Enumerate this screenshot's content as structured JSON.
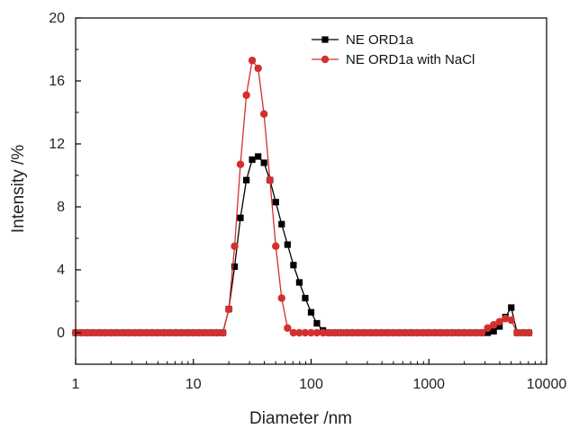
{
  "chart_data": {
    "type": "scatter",
    "x_scale": "log",
    "xlabel": "Diameter /nm",
    "ylabel": "Intensity /%",
    "xlim": [
      1,
      10000
    ],
    "ylim": [
      -2,
      20
    ],
    "x_ticks": [
      1,
      10,
      100,
      1000,
      10000
    ],
    "x_tick_labels": [
      "1",
      "10",
      "100",
      "1000",
      "10000"
    ],
    "y_ticks": [
      0,
      4,
      8,
      12,
      16,
      20
    ],
    "y_tick_labels": [
      "0",
      "4",
      "8",
      "12",
      "16",
      "20"
    ],
    "grid": false,
    "legend_position": "top-right",
    "series": [
      {
        "name": "NE ORD1a",
        "color": "#000000",
        "marker": "square",
        "points": [
          [
            1.0,
            0
          ],
          [
            1.12,
            0
          ],
          [
            1.25,
            0
          ],
          [
            1.41,
            0
          ],
          [
            1.58,
            0
          ],
          [
            1.78,
            0
          ],
          [
            2.0,
            0
          ],
          [
            2.24,
            0
          ],
          [
            2.51,
            0
          ],
          [
            2.82,
            0
          ],
          [
            3.16,
            0
          ],
          [
            3.55,
            0
          ],
          [
            3.98,
            0
          ],
          [
            4.47,
            0
          ],
          [
            5.01,
            0
          ],
          [
            5.62,
            0
          ],
          [
            6.31,
            0
          ],
          [
            7.08,
            0
          ],
          [
            7.94,
            0
          ],
          [
            8.91,
            0
          ],
          [
            10.0,
            0
          ],
          [
            11.2,
            0
          ],
          [
            12.6,
            0
          ],
          [
            14.1,
            0
          ],
          [
            15.8,
            0
          ],
          [
            17.8,
            0
          ],
          [
            20.0,
            1.5
          ],
          [
            22.4,
            4.2
          ],
          [
            25.1,
            7.3
          ],
          [
            28.2,
            9.7
          ],
          [
            31.6,
            11.0
          ],
          [
            35.5,
            11.2
          ],
          [
            39.8,
            10.8
          ],
          [
            44.7,
            9.7
          ],
          [
            50.1,
            8.3
          ],
          [
            56.2,
            6.9
          ],
          [
            63.1,
            5.6
          ],
          [
            70.8,
            4.3
          ],
          [
            79.4,
            3.2
          ],
          [
            89.1,
            2.2
          ],
          [
            100,
            1.3
          ],
          [
            112,
            0.6
          ],
          [
            126,
            0.15
          ],
          [
            141,
            0
          ],
          [
            158,
            0
          ],
          [
            178,
            0
          ],
          [
            200,
            0
          ],
          [
            224,
            0
          ],
          [
            251,
            0
          ],
          [
            282,
            0
          ],
          [
            316,
            0
          ],
          [
            355,
            0
          ],
          [
            398,
            0
          ],
          [
            447,
            0
          ],
          [
            501,
            0
          ],
          [
            562,
            0
          ],
          [
            631,
            0
          ],
          [
            708,
            0
          ],
          [
            794,
            0
          ],
          [
            891,
            0
          ],
          [
            1000,
            0
          ],
          [
            1120,
            0
          ],
          [
            1260,
            0
          ],
          [
            1410,
            0
          ],
          [
            1580,
            0
          ],
          [
            1780,
            0
          ],
          [
            2000,
            0
          ],
          [
            2240,
            0
          ],
          [
            2510,
            0
          ],
          [
            2820,
            0
          ],
          [
            3160,
            0
          ],
          [
            3550,
            0.1
          ],
          [
            3980,
            0.4
          ],
          [
            4470,
            1.0
          ],
          [
            5010,
            1.6
          ],
          [
            5620,
            0
          ],
          [
            6310,
            0
          ],
          [
            7080,
            0
          ]
        ]
      },
      {
        "name": "NE ORD1a with NaCl",
        "color": "#d32f2f",
        "marker": "circle",
        "points": [
          [
            1.0,
            0
          ],
          [
            1.12,
            0
          ],
          [
            1.25,
            0
          ],
          [
            1.41,
            0
          ],
          [
            1.58,
            0
          ],
          [
            1.78,
            0
          ],
          [
            2.0,
            0
          ],
          [
            2.24,
            0
          ],
          [
            2.51,
            0
          ],
          [
            2.82,
            0
          ],
          [
            3.16,
            0
          ],
          [
            3.55,
            0
          ],
          [
            3.98,
            0
          ],
          [
            4.47,
            0
          ],
          [
            5.01,
            0
          ],
          [
            5.62,
            0
          ],
          [
            6.31,
            0
          ],
          [
            7.08,
            0
          ],
          [
            7.94,
            0
          ],
          [
            8.91,
            0
          ],
          [
            10.0,
            0
          ],
          [
            11.2,
            0
          ],
          [
            12.6,
            0
          ],
          [
            14.1,
            0
          ],
          [
            15.8,
            0
          ],
          [
            17.8,
            0
          ],
          [
            20.0,
            1.5
          ],
          [
            22.4,
            5.5
          ],
          [
            25.1,
            10.7
          ],
          [
            28.2,
            15.1
          ],
          [
            31.6,
            17.3
          ],
          [
            35.5,
            16.8
          ],
          [
            39.8,
            13.9
          ],
          [
            44.7,
            9.7
          ],
          [
            50.1,
            5.5
          ],
          [
            56.2,
            2.2
          ],
          [
            63.1,
            0.3
          ],
          [
            70.8,
            0
          ],
          [
            79.4,
            0
          ],
          [
            89.1,
            0
          ],
          [
            100,
            0
          ],
          [
            112,
            0
          ],
          [
            126,
            0
          ],
          [
            141,
            0
          ],
          [
            158,
            0
          ],
          [
            178,
            0
          ],
          [
            200,
            0
          ],
          [
            224,
            0
          ],
          [
            251,
            0
          ],
          [
            282,
            0
          ],
          [
            316,
            0
          ],
          [
            355,
            0
          ],
          [
            398,
            0
          ],
          [
            447,
            0
          ],
          [
            501,
            0
          ],
          [
            562,
            0
          ],
          [
            631,
            0
          ],
          [
            708,
            0
          ],
          [
            794,
            0
          ],
          [
            891,
            0
          ],
          [
            1000,
            0
          ],
          [
            1120,
            0
          ],
          [
            1260,
            0
          ],
          [
            1410,
            0
          ],
          [
            1580,
            0
          ],
          [
            1780,
            0
          ],
          [
            2000,
            0
          ],
          [
            2240,
            0
          ],
          [
            2510,
            0
          ],
          [
            2820,
            0
          ],
          [
            3160,
            0.3
          ],
          [
            3550,
            0.5
          ],
          [
            3980,
            0.7
          ],
          [
            4470,
            0.9
          ],
          [
            5010,
            0.8
          ],
          [
            5620,
            0
          ],
          [
            6310,
            0
          ],
          [
            7080,
            0
          ]
        ]
      }
    ]
  }
}
